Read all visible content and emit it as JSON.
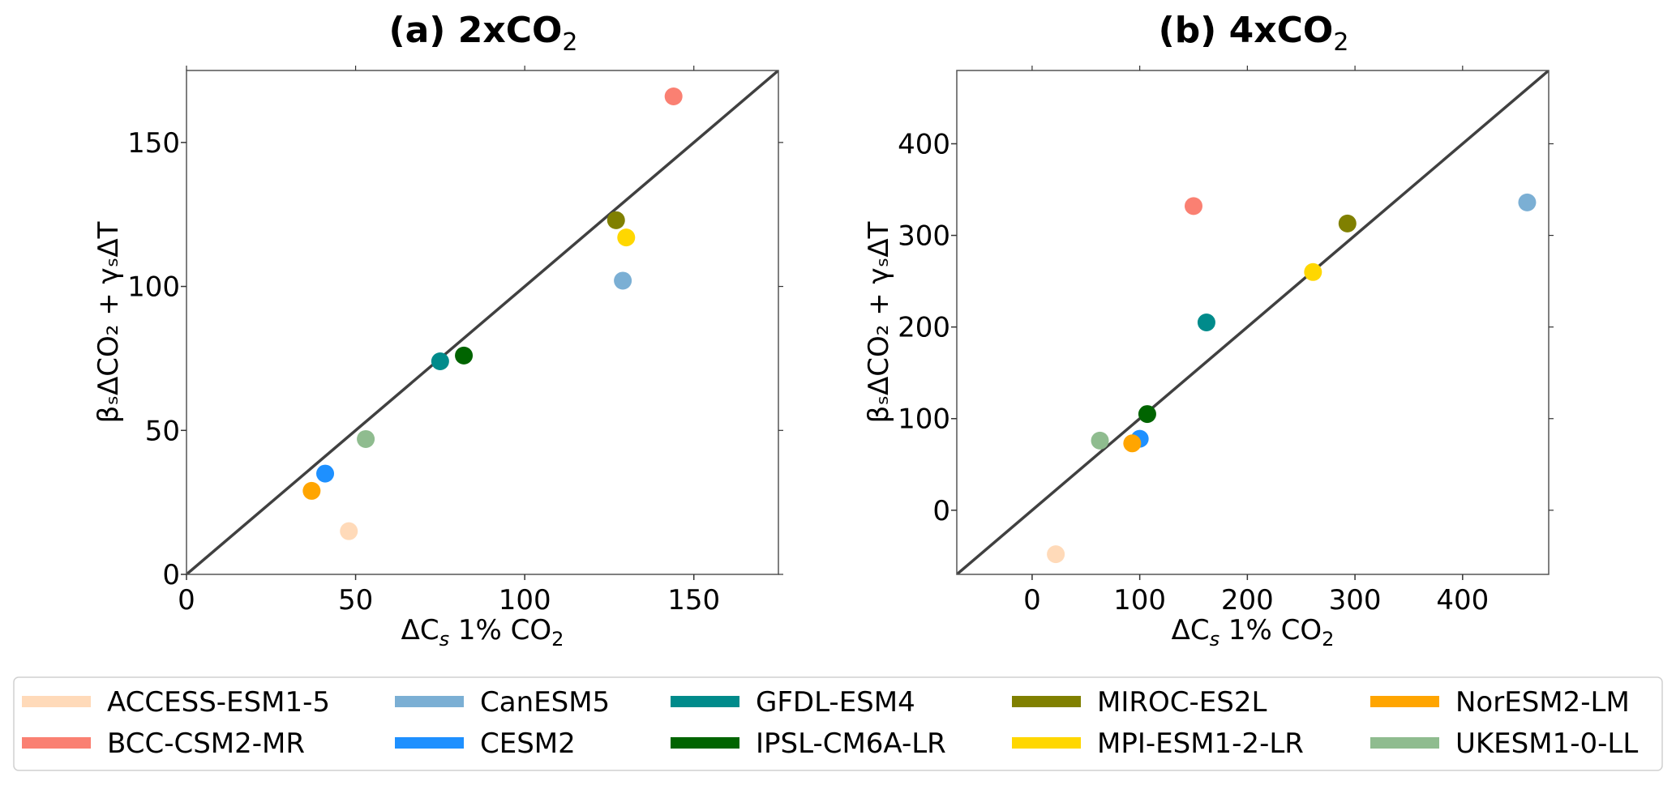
{
  "chart_data": [
    {
      "type": "scatter",
      "title": "(a) 2xCO",
      "title_sub": "2",
      "xlabel": "ΔC",
      "xlabel_sub": "s",
      "xlabel_tail": " 1% CO",
      "xlabel_tail_sub": "2",
      "ylabel": "βₛΔCO₂ + γₛΔT",
      "xlim": [
        0,
        175
      ],
      "ylim": [
        0,
        175
      ],
      "xticks": [
        0,
        50,
        100,
        150
      ],
      "yticks": [
        0,
        50,
        100,
        150
      ],
      "one_to_one_line": true,
      "points": [
        {
          "model": "ACCESS-ESM1-5",
          "x": 48,
          "y": 15
        },
        {
          "model": "BCC-CSM2-MR",
          "x": 144,
          "y": 166
        },
        {
          "model": "CanESM5",
          "x": 129,
          "y": 102
        },
        {
          "model": "CESM2",
          "x": 41,
          "y": 35
        },
        {
          "model": "GFDL-ESM4",
          "x": 75,
          "y": 74
        },
        {
          "model": "IPSL-CM6A-LR",
          "x": 82,
          "y": 76
        },
        {
          "model": "MIROC-ES2L",
          "x": 127,
          "y": 123
        },
        {
          "model": "MPI-ESM1-2-LR",
          "x": 130,
          "y": 117
        },
        {
          "model": "NorESM2-LM",
          "x": 37,
          "y": 29
        },
        {
          "model": "UKESM1-0-LL",
          "x": 53,
          "y": 47
        }
      ]
    },
    {
      "type": "scatter",
      "title": "(b) 4xCO",
      "title_sub": "2",
      "xlabel": "ΔC",
      "xlabel_sub": "s",
      "xlabel_tail": " 1% CO",
      "xlabel_tail_sub": "2",
      "ylabel": "βₛΔCO₂ + γₛΔT",
      "xlim": [
        -70,
        480
      ],
      "ylim": [
        -70,
        480
      ],
      "xticks": [
        0,
        100,
        200,
        300,
        400
      ],
      "yticks": [
        0,
        100,
        200,
        300,
        400
      ],
      "one_to_one_line": true,
      "points": [
        {
          "model": "ACCESS-ESM1-5",
          "x": 22,
          "y": -48
        },
        {
          "model": "BCC-CSM2-MR",
          "x": 150,
          "y": 332
        },
        {
          "model": "CanESM5",
          "x": 460,
          "y": 336
        },
        {
          "model": "CESM2",
          "x": 100,
          "y": 78
        },
        {
          "model": "GFDL-ESM4",
          "x": 162,
          "y": 205
        },
        {
          "model": "IPSL-CM6A-LR",
          "x": 107,
          "y": 105
        },
        {
          "model": "MIROC-ES2L",
          "x": 293,
          "y": 313
        },
        {
          "model": "MPI-ESM1-2-LR",
          "x": 261,
          "y": 260
        },
        {
          "model": "NorESM2-LM",
          "x": 93,
          "y": 73
        },
        {
          "model": "UKESM1-0-LL",
          "x": 63,
          "y": 76
        }
      ]
    }
  ],
  "legend": {
    "placement": "bottom",
    "entries": [
      {
        "label": "ACCESS-ESM1-5",
        "color": "#FFDAB9"
      },
      {
        "label": "BCC-CSM2-MR",
        "color": "#FA8072"
      },
      {
        "label": "CanESM5",
        "color": "#7BAFD4"
      },
      {
        "label": "CESM2",
        "color": "#1E90FF"
      },
      {
        "label": "GFDL-ESM4",
        "color": "#008B8B"
      },
      {
        "label": "IPSL-CM6A-LR",
        "color": "#006400"
      },
      {
        "label": "MIROC-ES2L",
        "color": "#808000"
      },
      {
        "label": "MPI-ESM1-2-LR",
        "color": "#FFD700"
      },
      {
        "label": "NorESM2-LM",
        "color": "#FFA500"
      },
      {
        "label": "UKESM1-0-LL",
        "color": "#8FBC8F"
      }
    ]
  }
}
